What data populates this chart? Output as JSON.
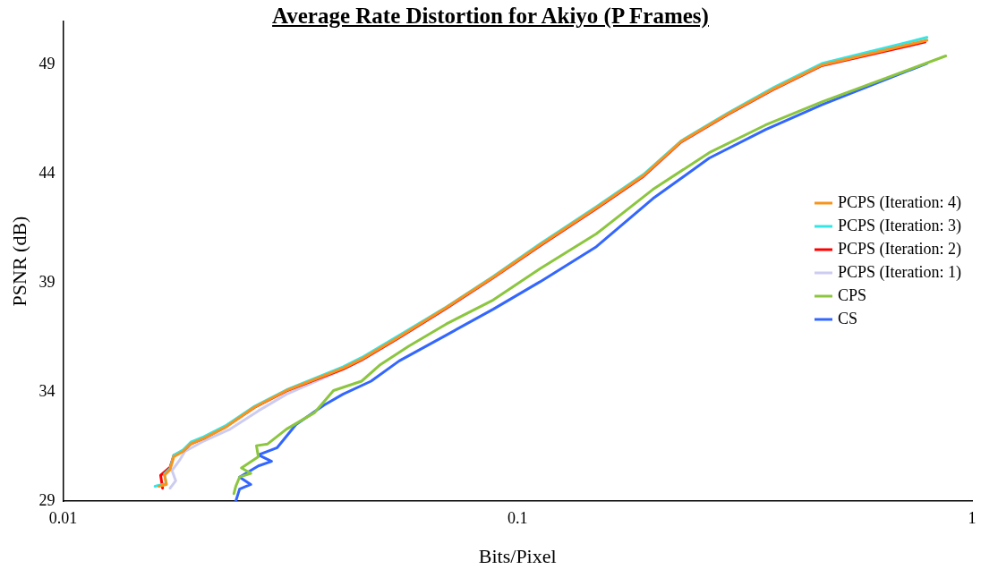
{
  "chart_data": {
    "type": "line",
    "title": "Average Rate Distortion for Akiyo (P Frames)",
    "xlabel": "Bits/Pixel",
    "ylabel": "PSNR (dB)",
    "log": "x",
    "xlim": [
      0.01,
      1
    ],
    "xticks": [
      0.01,
      0.1,
      1
    ],
    "ylim": [
      29,
      51
    ],
    "yticks": [
      29,
      34,
      39,
      44,
      49
    ],
    "grid": false,
    "legend": "right",
    "marker": "none",
    "line_style": "solid",
    "series": [
      {
        "name": "PCPS (Iteration: 4)",
        "color": "#f7941d",
        "x": [
          0.01625,
          0.01688,
          0.01672,
          0.0172,
          0.01753,
          0.01838,
          0.0191,
          0.02041,
          0.02277,
          0.0264,
          0.03102,
          0.03753,
          0.04128,
          0.04539,
          0.05491,
          0.06966,
          0.08838,
          0.1121,
          0.1491,
          0.1892,
          0.2289,
          0.2903,
          0.3683,
          0.4672,
          0.7959
        ],
        "values": [
          29.68,
          29.76,
          30.18,
          30.44,
          31.03,
          31.28,
          31.62,
          31.88,
          32.38,
          33.31,
          34.07,
          34.75,
          35.09,
          35.51,
          36.53,
          37.88,
          39.27,
          40.75,
          42.45,
          43.93,
          45.49,
          46.76,
          47.94,
          49.0,
          50.14
        ]
      },
      {
        "name": "PCPS (Iteration: 3)",
        "color": "#33e6e6",
        "x": [
          0.01594,
          0.01688,
          0.01672,
          0.0172,
          0.01753,
          0.01838,
          0.0191,
          0.02041,
          0.02277,
          0.0264,
          0.03102,
          0.03753,
          0.04128,
          0.04539,
          0.05491,
          0.06966,
          0.08838,
          0.1121,
          0.1491,
          0.1892,
          0.2289,
          0.2903,
          0.3683,
          0.4672,
          0.7959
        ],
        "values": [
          29.68,
          29.8,
          30.25,
          30.5,
          31.1,
          31.35,
          31.7,
          31.95,
          32.45,
          33.35,
          34.1,
          34.8,
          35.15,
          35.58,
          36.6,
          37.9,
          39.3,
          40.8,
          42.5,
          43.98,
          45.52,
          46.8,
          48.0,
          49.07,
          50.27
        ]
      },
      {
        "name": "PCPS (Iteration: 2)",
        "color": "#ff0000",
        "x": [
          0.01656,
          0.0164,
          0.0172,
          0.01753,
          0.01838,
          0.0191,
          0.02041,
          0.02277,
          0.0264,
          0.03102,
          0.03753,
          0.04128,
          0.04539,
          0.05491,
          0.06966,
          0.08838,
          0.1121,
          0.1491,
          0.1892,
          0.2289,
          0.2903,
          0.3683,
          0.4672,
          0.788
        ],
        "values": [
          29.59,
          30.18,
          30.55,
          31.1,
          31.3,
          31.62,
          31.88,
          32.4,
          33.3,
          34.05,
          34.72,
          35.05,
          35.48,
          36.5,
          37.85,
          39.25,
          40.72,
          42.42,
          43.9,
          45.47,
          46.74,
          47.92,
          48.98,
          50.06
        ]
      },
      {
        "name": "PCPS (Iteration: 1)",
        "color": "#ccccf0",
        "x": [
          0.0172,
          0.0177,
          0.01737,
          0.01803,
          0.01855,
          0.02022,
          0.02333,
          0.0269,
          0.03102,
          0.03936,
          0.04539,
          0.05491,
          0.06966,
          0.08838,
          0.1121,
          0.1491,
          0.1892,
          0.2289,
          0.2903,
          0.3683,
          0.4672,
          0.788
        ],
        "values": [
          29.59,
          29.93,
          30.4,
          30.86,
          31.28,
          31.71,
          32.3,
          33.14,
          33.9,
          34.84,
          35.45,
          36.48,
          37.82,
          39.22,
          40.7,
          42.4,
          43.88,
          45.45,
          46.72,
          47.9,
          48.96,
          50.04
        ]
      },
      {
        "name": "CPS",
        "color": "#8cc63f",
        "x": [
          0.02377,
          0.024,
          0.02446,
          0.02589,
          0.02469,
          0.0269,
          0.02664,
          0.0282,
          0.03102,
          0.03579,
          0.03936,
          0.04539,
          0.04993,
          0.05759,
          0.06966,
          0.08838,
          0.1121,
          0.1491,
          0.1984,
          0.264,
          0.3512,
          0.4672,
          0.8752
        ],
        "values": [
          29.34,
          29.68,
          30.1,
          30.27,
          30.52,
          31.03,
          31.54,
          31.62,
          32.3,
          33.06,
          34.07,
          34.5,
          35.26,
          36.1,
          37.12,
          38.22,
          39.66,
          41.26,
          43.29,
          44.98,
          46.25,
          47.31,
          49.42
        ]
      },
      {
        "name": "CS",
        "color": "#3366ff",
        "x": [
          0.024,
          0.02446,
          0.02589,
          0.02446,
          0.0269,
          0.02876,
          0.0269,
          0.0296,
          0.03255,
          0.03753,
          0.04128,
          0.04762,
          0.05491,
          0.06966,
          0.08838,
          0.1121,
          0.1491,
          0.1984,
          0.264,
          0.3512,
          0.4672,
          0.7959
        ],
        "values": [
          29.0,
          29.55,
          29.76,
          30.1,
          30.61,
          30.82,
          31.12,
          31.45,
          32.51,
          33.4,
          33.9,
          34.5,
          35.43,
          36.61,
          37.8,
          39.06,
          40.67,
          42.87,
          44.73,
          46.04,
          47.18,
          49.08
        ]
      }
    ]
  }
}
